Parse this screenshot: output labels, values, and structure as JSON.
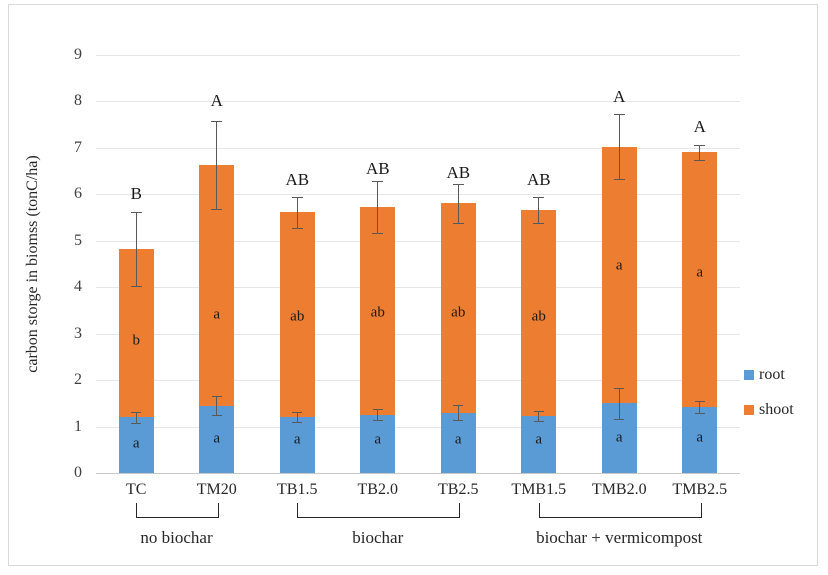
{
  "chart_data": {
    "type": "bar",
    "stacked": true,
    "title": "",
    "ylabel": "carbon storge in biomss (tonC/ha)",
    "xlabel": "",
    "ylim": [
      0,
      9
    ],
    "ytick_step": 1,
    "grid": true,
    "legend_position": "right",
    "categories": [
      "TC",
      "TM20",
      "TB1.5",
      "TB2.0",
      "TB2.5",
      "TMB1.5",
      "TMB2.0",
      "TMB2.5"
    ],
    "series": [
      {
        "name": "root",
        "color": "#5B9BD5",
        "values": [
          1.2,
          1.45,
          1.2,
          1.25,
          1.3,
          1.22,
          1.5,
          1.42
        ],
        "error": [
          0.12,
          0.21,
          0.11,
          0.12,
          0.17,
          0.11,
          0.33,
          0.12
        ],
        "letters": [
          "a",
          "a",
          "a",
          "a",
          "a",
          "a",
          "a",
          "a"
        ],
        "letter_y": [
          0.63,
          0.74,
          0.7,
          0.7,
          0.72,
          0.7,
          0.76,
          0.76
        ]
      },
      {
        "name": "shoot",
        "color": "#ED7D31",
        "values": [
          3.62,
          5.18,
          4.41,
          4.48,
          4.5,
          4.44,
          5.52,
          5.48
        ],
        "letters": [
          "b",
          "a",
          "ab",
          "ab",
          "ab",
          "ab",
          "a",
          "a"
        ],
        "letter_y": [
          2.85,
          3.4,
          3.35,
          3.45,
          3.45,
          3.35,
          4.45,
          4.3
        ]
      }
    ],
    "totals": [
      4.82,
      6.63,
      5.61,
      5.73,
      5.8,
      5.66,
      7.02,
      6.9
    ],
    "total_error": [
      0.8,
      0.95,
      0.33,
      0.56,
      0.41,
      0.29,
      0.7,
      0.16
    ],
    "sig_letters": [
      "B",
      "A",
      "AB",
      "AB",
      "AB",
      "AB",
      "A",
      "A"
    ],
    "sig_letter_y": [
      6.0,
      8.0,
      6.3,
      6.55,
      6.45,
      6.3,
      8.1,
      7.45
    ],
    "groups": [
      {
        "label": "no biochar",
        "start": 0,
        "end": 1
      },
      {
        "label": "biochar",
        "start": 2,
        "end": 4
      },
      {
        "label": "biochar + vermicompost",
        "start": 5,
        "end": 7
      }
    ],
    "legend": [
      {
        "label": "root",
        "color": "#5B9BD5"
      },
      {
        "label": "shoot",
        "color": "#ED7D31"
      }
    ],
    "colors": {
      "root": "#5B9BD5",
      "shoot": "#ED7D31",
      "gridline": "#e6e6e6",
      "error_bar": "#595959",
      "frame_border": "#d9d9d9"
    }
  }
}
